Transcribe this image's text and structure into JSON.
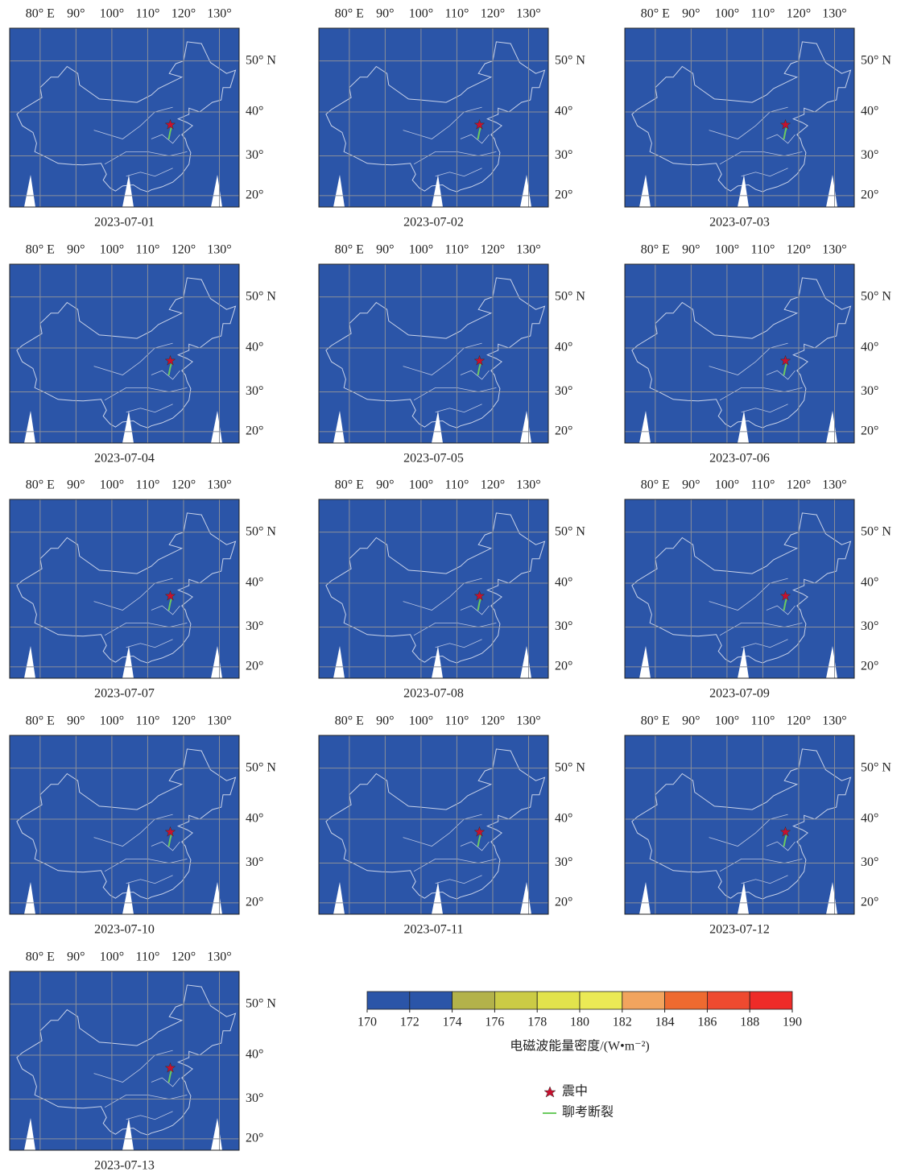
{
  "panels": [
    {
      "date": "2023-07-01"
    },
    {
      "date": "2023-07-02"
    },
    {
      "date": "2023-07-03"
    },
    {
      "date": "2023-07-04"
    },
    {
      "date": "2023-07-05"
    },
    {
      "date": "2023-07-06"
    },
    {
      "date": "2023-07-07"
    },
    {
      "date": "2023-07-08"
    },
    {
      "date": "2023-07-09"
    },
    {
      "date": "2023-07-10"
    },
    {
      "date": "2023-07-11"
    },
    {
      "date": "2023-07-12"
    },
    {
      "date": "2023-07-13"
    }
  ],
  "map": {
    "xlim": [
      71.5,
      135.5
    ],
    "ylim": [
      17,
      55.5
    ],
    "xticks": [
      {
        "value": 80,
        "label": "80° E"
      },
      {
        "value": 90,
        "label": "90°"
      },
      {
        "value": 100,
        "label": "100°"
      },
      {
        "value": 110,
        "label": "110°"
      },
      {
        "value": 120,
        "label": "120°"
      },
      {
        "value": 130,
        "label": "130°"
      }
    ],
    "yticks": [
      {
        "value": 50,
        "label": "50° N"
      },
      {
        "value": 40,
        "label": "40°"
      },
      {
        "value": 30,
        "label": "30°"
      },
      {
        "value": 20,
        "label": "20°"
      }
    ],
    "epicenter": {
      "lon": 116.3,
      "lat": 37.2
    }
  },
  "colorbar": {
    "ticks": [
      170,
      172,
      174,
      176,
      178,
      180,
      182,
      184,
      186,
      188,
      190
    ],
    "colors": [
      "#2b55a8",
      "#2b55a8",
      "#b3b24a",
      "#cbcb45",
      "#e2e34c",
      "#ebea55",
      "#f2a45e",
      "#ee6a30",
      "#ee4a30",
      "#ee2b28"
    ],
    "label": "电磁波能量密度/(W•m⁻²)"
  },
  "legend": {
    "epicenter": "震中",
    "fault": "聊考断裂"
  }
}
